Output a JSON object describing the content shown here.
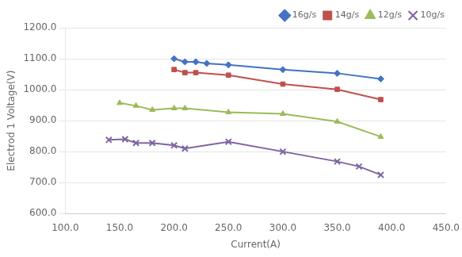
{
  "chart_data": {
    "type": "line",
    "xlabel": "Current(A)",
    "ylabel": "Electrod 1 Voltage(V)",
    "series": [
      {
        "name": "16g/s",
        "color": "#4472C4",
        "marker": "diamond",
        "x": [
          200,
          210,
          220,
          230,
          250,
          300,
          350,
          390
        ],
        "values": [
          1100,
          1090,
          1090,
          1085,
          1080,
          1065,
          1053,
          1035
        ]
      },
      {
        "name": "14g/s",
        "color": "#C0504D",
        "marker": "square",
        "x": [
          200,
          210,
          220,
          250,
          300,
          350,
          390
        ],
        "values": [
          1065,
          1055,
          1055,
          1047,
          1018,
          1001,
          968
        ]
      },
      {
        "name": "12g/s",
        "color": "#9BBB59",
        "marker": "triangle",
        "x": [
          150,
          165,
          180,
          200,
          210,
          250,
          300,
          350,
          390
        ],
        "values": [
          957,
          948,
          935,
          940,
          940,
          927,
          922,
          897,
          848
        ]
      },
      {
        "name": "10g/s",
        "color": "#8064A2",
        "marker": "x",
        "x": [
          140,
          155,
          165,
          180,
          200,
          210,
          250,
          300,
          350,
          370,
          390
        ],
        "values": [
          838,
          840,
          828,
          828,
          820,
          810,
          832,
          800,
          768,
          752,
          725
        ]
      }
    ],
    "xlim": [
      100,
      450
    ],
    "xticks": [
      {
        "value": 100,
        "label": "100.0"
      },
      {
        "value": 150,
        "label": "150.0"
      },
      {
        "value": 200,
        "label": "200.0"
      },
      {
        "value": 250,
        "label": "250.0"
      },
      {
        "value": 300,
        "label": "300.0"
      },
      {
        "value": 350,
        "label": "350.0"
      },
      {
        "value": 400,
        "label": "400.0"
      },
      {
        "value": 450,
        "label": "450.0"
      }
    ],
    "ylim": [
      600,
      1200
    ],
    "yticks": [
      {
        "value": 600,
        "label": "600.0"
      },
      {
        "value": 700,
        "label": "700.0"
      },
      {
        "value": 800,
        "label": "800.0"
      },
      {
        "value": 900,
        "label": "900.0"
      },
      {
        "value": 1000,
        "label": "1000.0"
      },
      {
        "value": 1100,
        "label": "1100.0"
      },
      {
        "value": 1200,
        "label": "1200.0"
      }
    ],
    "grid": "y",
    "legend": "upper right"
  }
}
